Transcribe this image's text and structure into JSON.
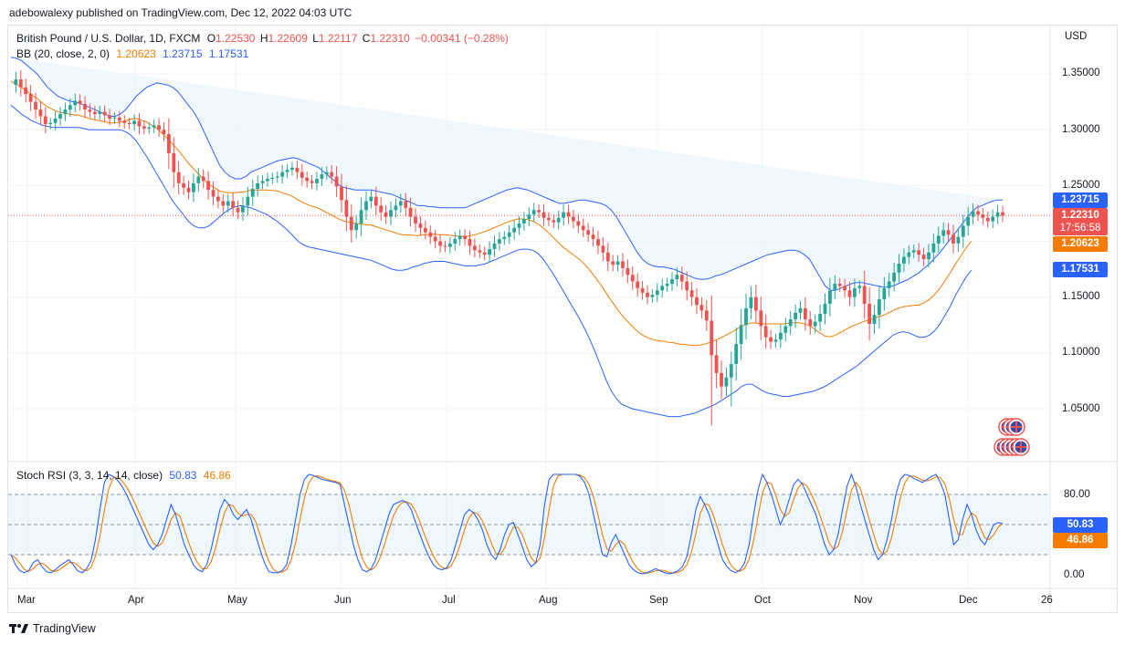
{
  "header": {
    "publish_line": "adebowalexy published on TradingView.com, Dec 12, 2022 04:03 UTC"
  },
  "main_pane": {
    "symbol": "British Pound / U.S. Dollar, 1D, FXCM",
    "ohlc": {
      "open_label": "O",
      "open": "1.22530",
      "high_label": "H",
      "high": "1.22609",
      "low_label": "L",
      "low": "1.22117",
      "close_label": "C",
      "close": "1.22310",
      "change": "−0.00341 (−0.28%)"
    },
    "bb_label": "BB (20, close, 2, 0)",
    "bb_basis": "1.20623",
    "bb_upper": "1.23715",
    "bb_lower": "1.17531",
    "currency": "USD",
    "price_ticks": [
      "1.35000",
      "1.30000",
      "1.25000",
      "1.15000",
      "1.10000",
      "1.05000"
    ],
    "tags": {
      "upper": "1.23715",
      "last": "1.22310",
      "countdown": "17:56:58",
      "basis": "1.20623",
      "lower": "1.17531"
    }
  },
  "rsi_pane": {
    "label": "Stoch RSI (3, 3, 14, 14, close)",
    "k_value": "50.83",
    "d_value": "46.86",
    "ticks": [
      "80.00",
      "0.00"
    ]
  },
  "time_axis": [
    "Mar",
    "Apr",
    "May",
    "Jun",
    "Jul",
    "Aug",
    "Sep",
    "Oct",
    "Nov",
    "Dec",
    "26"
  ],
  "footer": {
    "brand": "TradingView"
  },
  "colors": {
    "up": "#26a69a",
    "down": "#ef5350",
    "basis": "#f57c00",
    "band": "#2962ff",
    "band_fill": "#e3f2fd",
    "k_line": "#2962ff",
    "d_line": "#f57c00"
  },
  "chart_data": {
    "type": "candlestick",
    "title": "British Pound / U.S. Dollar, 1D, FXCM",
    "y_unit": "USD",
    "ylim": [
      1.0,
      1.38
    ],
    "x_months": [
      "Mar",
      "Apr",
      "May",
      "Jun",
      "Jul",
      "Aug",
      "Sep",
      "Oct",
      "Nov",
      "Dec"
    ],
    "price_path": [
      1.34,
      1.345,
      1.338,
      1.332,
      1.325,
      1.318,
      1.312,
      1.305,
      1.306,
      1.31,
      1.314,
      1.318,
      1.322,
      1.326,
      1.323,
      1.318,
      1.316,
      1.314,
      1.316,
      1.313,
      1.31,
      1.311,
      1.308,
      1.306,
      1.305,
      1.308,
      1.303,
      1.301,
      1.302,
      1.304,
      1.3,
      1.296,
      1.279,
      1.262,
      1.252,
      1.248,
      1.244,
      1.252,
      1.258,
      1.254,
      1.246,
      1.24,
      1.236,
      1.232,
      1.236,
      1.23,
      1.226,
      1.232,
      1.24,
      1.247,
      1.252,
      1.254,
      1.256,
      1.257,
      1.258,
      1.262,
      1.264,
      1.266,
      1.262,
      1.257,
      1.254,
      1.252,
      1.256,
      1.26,
      1.262,
      1.258,
      1.249,
      1.237,
      1.222,
      1.21,
      1.216,
      1.228,
      1.236,
      1.24,
      1.232,
      1.226,
      1.222,
      1.228,
      1.232,
      1.236,
      1.23,
      1.222,
      1.216,
      1.212,
      1.208,
      1.204,
      1.2,
      1.196,
      1.195,
      1.198,
      1.202,
      1.205,
      1.202,
      1.196,
      1.192,
      1.19,
      1.188,
      1.193,
      1.198,
      1.202,
      1.204,
      1.208,
      1.212,
      1.216,
      1.22,
      1.224,
      1.228,
      1.226,
      1.221,
      1.219,
      1.217,
      1.221,
      1.226,
      1.222,
      1.218,
      1.214,
      1.21,
      1.206,
      1.202,
      1.196,
      1.19,
      1.182,
      1.179,
      1.182,
      1.176,
      1.17,
      1.164,
      1.158,
      1.154,
      1.15,
      1.152,
      1.156,
      1.16,
      1.162,
      1.166,
      1.17,
      1.164,
      1.156,
      1.15,
      1.143,
      1.138,
      1.129,
      1.098,
      1.082,
      1.07,
      1.078,
      1.09,
      1.108,
      1.125,
      1.14,
      1.15,
      1.138,
      1.124,
      1.114,
      1.11,
      1.112,
      1.118,
      1.124,
      1.13,
      1.136,
      1.14,
      1.13,
      1.124,
      1.128,
      1.135,
      1.144,
      1.156,
      1.162,
      1.16,
      1.156,
      1.15,
      1.158,
      1.16,
      1.144,
      1.126,
      1.134,
      1.148,
      1.158,
      1.164,
      1.172,
      1.18,
      1.186,
      1.19,
      1.192,
      1.188,
      1.184,
      1.19,
      1.198,
      1.205,
      1.21,
      1.206,
      1.198,
      1.204,
      1.214,
      1.222,
      1.227,
      1.224,
      1.221,
      1.218,
      1.222,
      1.226,
      1.223
    ],
    "bb_upper_path": [
      1.365,
      1.364,
      1.362,
      1.358,
      1.354,
      1.35,
      1.344,
      1.338,
      1.334,
      1.33,
      1.328,
      1.326,
      1.325,
      1.324,
      1.322,
      1.32,
      1.318,
      1.316,
      1.314,
      1.312,
      1.312,
      1.314,
      1.318,
      1.324,
      1.33,
      1.334,
      1.338,
      1.34,
      1.342,
      1.341,
      1.34,
      1.338,
      1.334,
      1.328,
      1.322,
      1.316,
      1.308,
      1.298,
      1.288,
      1.278,
      1.268,
      1.262,
      1.258,
      1.256,
      1.256,
      1.258,
      1.262,
      1.264,
      1.266,
      1.268,
      1.27,
      1.272,
      1.273,
      1.274,
      1.275,
      1.274,
      1.272,
      1.27,
      1.268,
      1.266,
      1.262,
      1.258,
      1.254,
      1.25,
      1.248,
      1.247,
      1.246,
      1.246,
      1.246,
      1.246,
      1.245,
      1.244,
      1.243,
      1.242,
      1.24,
      1.238,
      1.236,
      1.234,
      1.232,
      1.232,
      1.231,
      1.231,
      1.23,
      1.23,
      1.23,
      1.23,
      1.23,
      1.23,
      1.232,
      1.234,
      1.236,
      1.238,
      1.24,
      1.242,
      1.244,
      1.246,
      1.247,
      1.248,
      1.247,
      1.246,
      1.244,
      1.242,
      1.24,
      1.238,
      1.236,
      1.234,
      1.234,
      1.235,
      1.236,
      1.237,
      1.237,
      1.236,
      1.235,
      1.234,
      1.232,
      1.228,
      1.222,
      1.214,
      1.206,
      1.198,
      1.19,
      1.184,
      1.18,
      1.178,
      1.177,
      1.177,
      1.176,
      1.175,
      1.173,
      1.171,
      1.169,
      1.167,
      1.166,
      1.166,
      1.167,
      1.169,
      1.17,
      1.172,
      1.174,
      1.176,
      1.178,
      1.18,
      1.182,
      1.184,
      1.186,
      1.188,
      1.189,
      1.19,
      1.191,
      1.192,
      1.192,
      1.191,
      1.188,
      1.184,
      1.176,
      1.168,
      1.16,
      1.156,
      1.156,
      1.158,
      1.16,
      1.162,
      1.163,
      1.163,
      1.162,
      1.161,
      1.16,
      1.159,
      1.159,
      1.16,
      1.162,
      1.164,
      1.166,
      1.169,
      1.172,
      1.176,
      1.18,
      1.185,
      1.19,
      1.196,
      1.202,
      1.208,
      1.214,
      1.22,
      1.226,
      1.23,
      1.232,
      1.234,
      1.236,
      1.237,
      1.237
    ],
    "bb_lower_path": [
      1.322,
      1.318,
      1.314,
      1.311,
      1.308,
      1.306,
      1.304,
      1.303,
      1.302,
      1.302,
      1.302,
      1.302,
      1.302,
      1.302,
      1.301,
      1.3,
      1.3,
      1.3,
      1.3,
      1.3,
      1.3,
      1.3,
      1.298,
      1.295,
      1.29,
      1.283,
      1.276,
      1.268,
      1.26,
      1.252,
      1.244,
      1.236,
      1.23,
      1.224,
      1.218,
      1.214,
      1.212,
      1.212,
      1.214,
      1.218,
      1.222,
      1.226,
      1.229,
      1.231,
      1.232,
      1.231,
      1.23,
      1.228,
      1.226,
      1.224,
      1.221,
      1.218,
      1.214,
      1.21,
      1.205,
      1.2,
      1.197,
      1.195,
      1.194,
      1.193,
      1.192,
      1.191,
      1.19,
      1.189,
      1.188,
      1.187,
      1.186,
      1.185,
      1.184,
      1.183,
      1.181,
      1.179,
      1.177,
      1.175,
      1.174,
      1.174,
      1.175,
      1.177,
      1.178,
      1.18,
      1.181,
      1.182,
      1.182,
      1.182,
      1.181,
      1.18,
      1.179,
      1.178,
      1.178,
      1.178,
      1.179,
      1.18,
      1.182,
      1.184,
      1.186,
      1.188,
      1.19,
      1.192,
      1.193,
      1.193,
      1.192,
      1.189,
      1.184,
      1.177,
      1.17,
      1.162,
      1.154,
      1.146,
      1.138,
      1.13,
      1.121,
      1.111,
      1.1,
      1.088,
      1.076,
      1.066,
      1.059,
      1.054,
      1.052,
      1.05,
      1.049,
      1.048,
      1.047,
      1.046,
      1.045,
      1.044,
      1.043,
      1.043,
      1.043,
      1.044,
      1.045,
      1.046,
      1.048,
      1.05,
      1.052,
      1.054,
      1.057,
      1.06,
      1.063,
      1.066,
      1.07,
      1.072,
      1.072,
      1.069,
      1.066,
      1.064,
      1.063,
      1.062,
      1.061,
      1.061,
      1.062,
      1.063,
      1.064,
      1.065,
      1.066,
      1.068,
      1.07,
      1.073,
      1.076,
      1.079,
      1.082,
      1.085,
      1.088,
      1.092,
      1.096,
      1.1,
      1.104,
      1.108,
      1.112,
      1.116,
      1.118,
      1.119,
      1.118,
      1.116,
      1.114,
      1.114,
      1.116,
      1.12,
      1.126,
      1.134,
      1.142,
      1.152,
      1.16,
      1.168,
      1.174
    ],
    "series": [
      {
        "name": "BB (20, close, 2, 0) basis",
        "last": 1.20623
      },
      {
        "name": "BB upper",
        "last": 1.23715
      },
      {
        "name": "BB lower",
        "last": 1.17531
      }
    ],
    "stoch_rsi": {
      "ylim": [
        -5,
        115
      ],
      "bands": [
        20,
        80
      ],
      "k": [
        20,
        10,
        4,
        2,
        4,
        12,
        15,
        8,
        3,
        2,
        5,
        9,
        12,
        15,
        10,
        4,
        2,
        6,
        14,
        35,
        65,
        92,
        100,
        98,
        94,
        88,
        80,
        70,
        60,
        50,
        40,
        30,
        25,
        30,
        40,
        55,
        70,
        60,
        45,
        30,
        20,
        10,
        5,
        3,
        10,
        25,
        45,
        65,
        75,
        70,
        60,
        55,
        60,
        65,
        55,
        40,
        25,
        12,
        3,
        2,
        2,
        4,
        10,
        30,
        55,
        80,
        95,
        100,
        99,
        97,
        95,
        94,
        93,
        92,
        90,
        70,
        50,
        30,
        15,
        5,
        3,
        6,
        15,
        30,
        45,
        60,
        70,
        72,
        74,
        72,
        65,
        52,
        40,
        28,
        18,
        10,
        6,
        5,
        7,
        15,
        30,
        45,
        60,
        65,
        62,
        55,
        45,
        30,
        20,
        15,
        25,
        40,
        50,
        52,
        40,
        28,
        15,
        8,
        12,
        30,
        70,
        95,
        100,
        100,
        100,
        100,
        100,
        100,
        98,
        92,
        80,
        60,
        40,
        20,
        18,
        32,
        40,
        30,
        20,
        10,
        5,
        2,
        1,
        2,
        4,
        6,
        4,
        2,
        1,
        2,
        4,
        8,
        18,
        40,
        65,
        78,
        70,
        60,
        45,
        30,
        15,
        8,
        4,
        2,
        5,
        12,
        30,
        60,
        85,
        100,
        92,
        80,
        65,
        50,
        60,
        75,
        90,
        95,
        90,
        80,
        70,
        60,
        45,
        30,
        20,
        25,
        40,
        65,
        88,
        100,
        88,
        70,
        55,
        40,
        25,
        15,
        20,
        35,
        55,
        80,
        95,
        100,
        99,
        96,
        94,
        92,
        95,
        98,
        100,
        92,
        80,
        55,
        30,
        35,
        55,
        70,
        60,
        45,
        35,
        30,
        40,
        50,
        52,
        51
      ]
    }
  }
}
